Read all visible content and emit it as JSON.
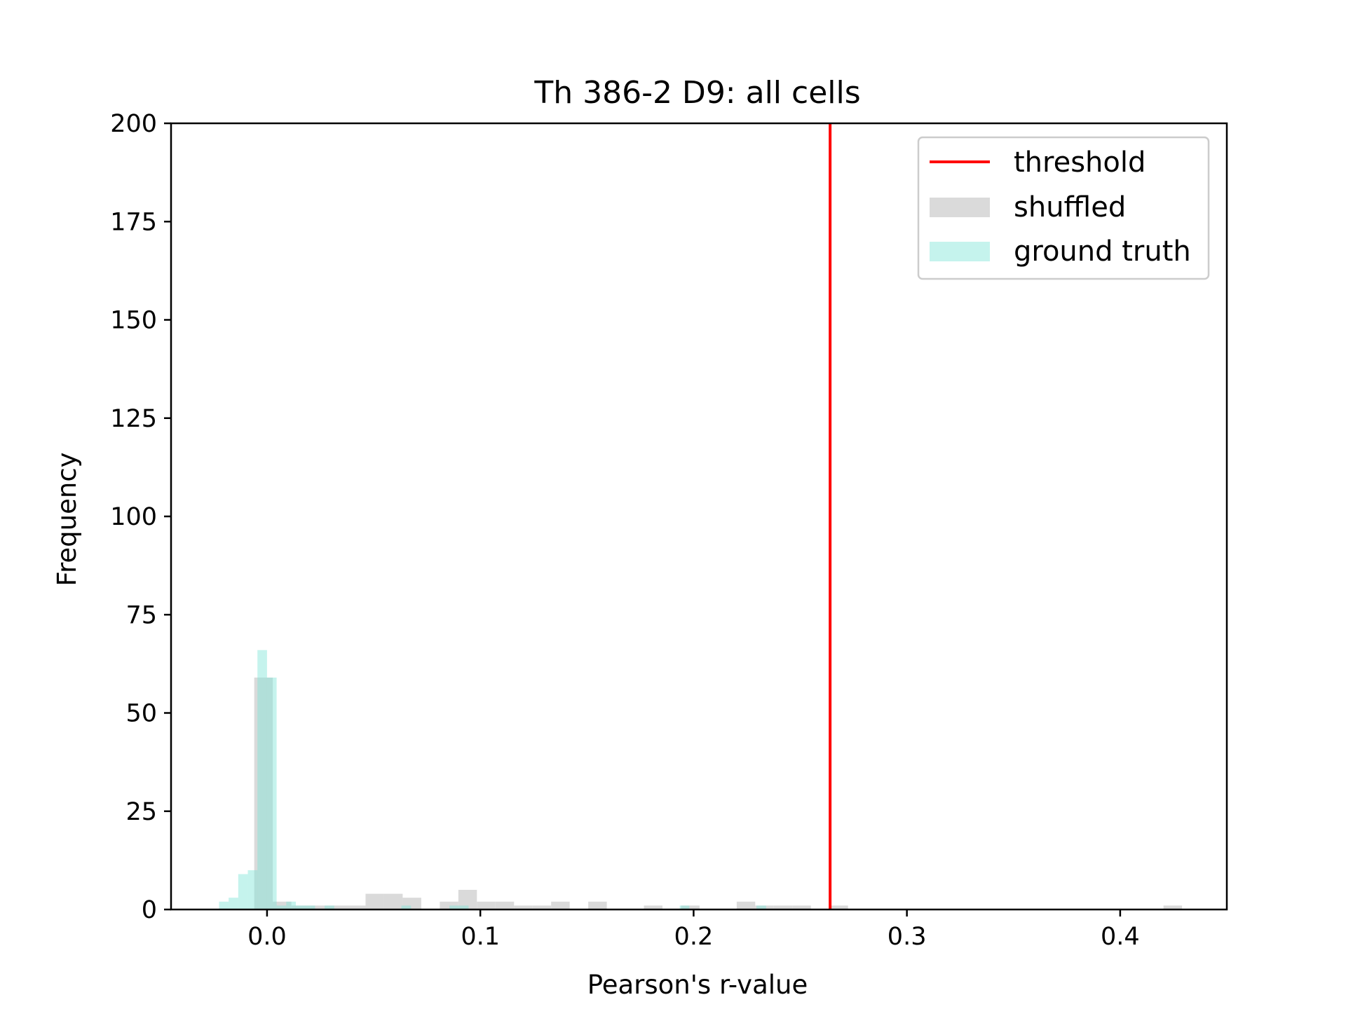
{
  "chart_data": {
    "type": "bar",
    "title": "Th 386-2 D9: all cells",
    "xlabel": "Pearson's r-value",
    "ylabel": "Frequency",
    "xlim": [
      -0.045,
      0.45
    ],
    "ylim": [
      0,
      200
    ],
    "x_ticks": [
      {
        "value": 0.0,
        "label": "0.0"
      },
      {
        "value": 0.1,
        "label": "0.1"
      },
      {
        "value": 0.2,
        "label": "0.2"
      },
      {
        "value": 0.3,
        "label": "0.3"
      },
      {
        "value": 0.4,
        "label": "0.4"
      }
    ],
    "y_ticks": [
      {
        "value": 0,
        "label": "0"
      },
      {
        "value": 25,
        "label": "25"
      },
      {
        "value": 50,
        "label": "50"
      },
      {
        "value": 75,
        "label": "75"
      },
      {
        "value": 100,
        "label": "100"
      },
      {
        "value": 125,
        "label": "125"
      },
      {
        "value": 150,
        "label": "150"
      },
      {
        "value": 175,
        "label": "175"
      },
      {
        "value": 200,
        "label": "200"
      }
    ],
    "grid": false,
    "legend_position": "top-right",
    "threshold": {
      "name": "threshold",
      "x": 0.264,
      "color": "#ff0000"
    },
    "series": [
      {
        "name": "shuffled",
        "color": "#d3d3d3",
        "bins": [
          {
            "x0": -0.006,
            "x1": 0.0027,
            "y": 59
          },
          {
            "x0": 0.0027,
            "x1": 0.0114,
            "y": 2
          },
          {
            "x0": 0.0114,
            "x1": 0.0201,
            "y": 1
          },
          {
            "x0": 0.0201,
            "x1": 0.0288,
            "y": 1
          },
          {
            "x0": 0.0288,
            "x1": 0.0375,
            "y": 1
          },
          {
            "x0": 0.0375,
            "x1": 0.0462,
            "y": 1
          },
          {
            "x0": 0.0462,
            "x1": 0.0549,
            "y": 4
          },
          {
            "x0": 0.0549,
            "x1": 0.0636,
            "y": 4
          },
          {
            "x0": 0.0636,
            "x1": 0.0723,
            "y": 3
          },
          {
            "x0": 0.081,
            "x1": 0.0897,
            "y": 2
          },
          {
            "x0": 0.0897,
            "x1": 0.0984,
            "y": 5
          },
          {
            "x0": 0.0984,
            "x1": 0.1071,
            "y": 2
          },
          {
            "x0": 0.1071,
            "x1": 0.1158,
            "y": 2
          },
          {
            "x0": 0.1158,
            "x1": 0.1245,
            "y": 1
          },
          {
            "x0": 0.1245,
            "x1": 0.1332,
            "y": 1
          },
          {
            "x0": 0.1332,
            "x1": 0.1419,
            "y": 2
          },
          {
            "x0": 0.1506,
            "x1": 0.1593,
            "y": 2
          },
          {
            "x0": 0.1767,
            "x1": 0.1854,
            "y": 1
          },
          {
            "x0": 0.1941,
            "x1": 0.2028,
            "y": 1
          },
          {
            "x0": 0.2202,
            "x1": 0.2289,
            "y": 2
          },
          {
            "x0": 0.2289,
            "x1": 0.2376,
            "y": 1
          },
          {
            "x0": 0.2376,
            "x1": 0.2463,
            "y": 1
          },
          {
            "x0": 0.2463,
            "x1": 0.255,
            "y": 1
          },
          {
            "x0": 0.2637,
            "x1": 0.2724,
            "y": 1
          },
          {
            "x0": 0.4203,
            "x1": 0.429,
            "y": 1
          }
        ]
      },
      {
        "name": "ground truth",
        "color": "#7fe5d8",
        "bins": [
          {
            "x0": -0.0225,
            "x1": -0.018,
            "y": 2
          },
          {
            "x0": -0.018,
            "x1": -0.0135,
            "y": 3
          },
          {
            "x0": -0.0135,
            "x1": -0.009,
            "y": 9
          },
          {
            "x0": -0.009,
            "x1": -0.0045,
            "y": 10
          },
          {
            "x0": -0.0045,
            "x1": 0.0,
            "y": 66
          },
          {
            "x0": 0.0,
            "x1": 0.0045,
            "y": 59
          },
          {
            "x0": 0.0045,
            "x1": 0.009,
            "y": 1
          },
          {
            "x0": 0.009,
            "x1": 0.0135,
            "y": 2
          },
          {
            "x0": 0.0135,
            "x1": 0.018,
            "y": 1
          },
          {
            "x0": 0.018,
            "x1": 0.0225,
            "y": 1
          },
          {
            "x0": 0.027,
            "x1": 0.0315,
            "y": 1
          },
          {
            "x0": 0.063,
            "x1": 0.0675,
            "y": 1
          },
          {
            "x0": 0.0855,
            "x1": 0.09,
            "y": 1
          },
          {
            "x0": 0.09,
            "x1": 0.0945,
            "y": 1
          },
          {
            "x0": 0.1935,
            "x1": 0.198,
            "y": 1
          },
          {
            "x0": 0.2295,
            "x1": 0.234,
            "y": 1
          }
        ]
      }
    ]
  }
}
